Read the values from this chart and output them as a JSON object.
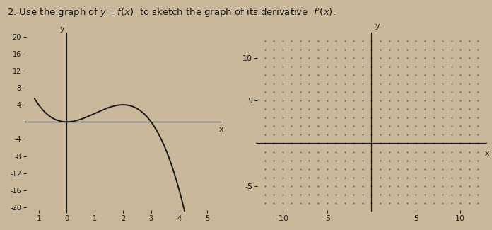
{
  "bg_color": "#c9b99a",
  "curve_color": "#1a1a1a",
  "axis_color": "#1a1a1a",
  "text_color": "#1a1a1a",
  "dot_color": "#666655",
  "title_text": "2. Use the graph of $y= f(x)$  to sketch the graph of its derivative $f'(x)$.",
  "left_xlim": [
    -1.5,
    5.5
  ],
  "left_ylim": [
    -21,
    21
  ],
  "left_xticks": [
    -1,
    0,
    1,
    2,
    3,
    4,
    5
  ],
  "left_xtick_labels": [
    "-1",
    "0",
    "1",
    "2",
    "3",
    "4",
    "5"
  ],
  "left_yticks": [
    -20,
    -16,
    -12,
    -8,
    -4,
    4,
    8,
    12,
    16,
    20
  ],
  "left_ytick_labels": [
    "-20",
    "-16",
    "-12",
    "-8",
    "-4",
    "4",
    "8",
    "12",
    "16",
    "20"
  ],
  "right_xlim": [
    -13,
    13
  ],
  "right_ylim": [
    -8,
    13
  ],
  "right_xticks": [
    -10,
    -5,
    5,
    10
  ],
  "right_xtick_labels": [
    "-10",
    "-5",
    "5",
    "10"
  ],
  "right_yticks": [
    -5,
    5,
    10
  ],
  "right_ytick_labels": [
    "-5",
    "5",
    "10"
  ]
}
